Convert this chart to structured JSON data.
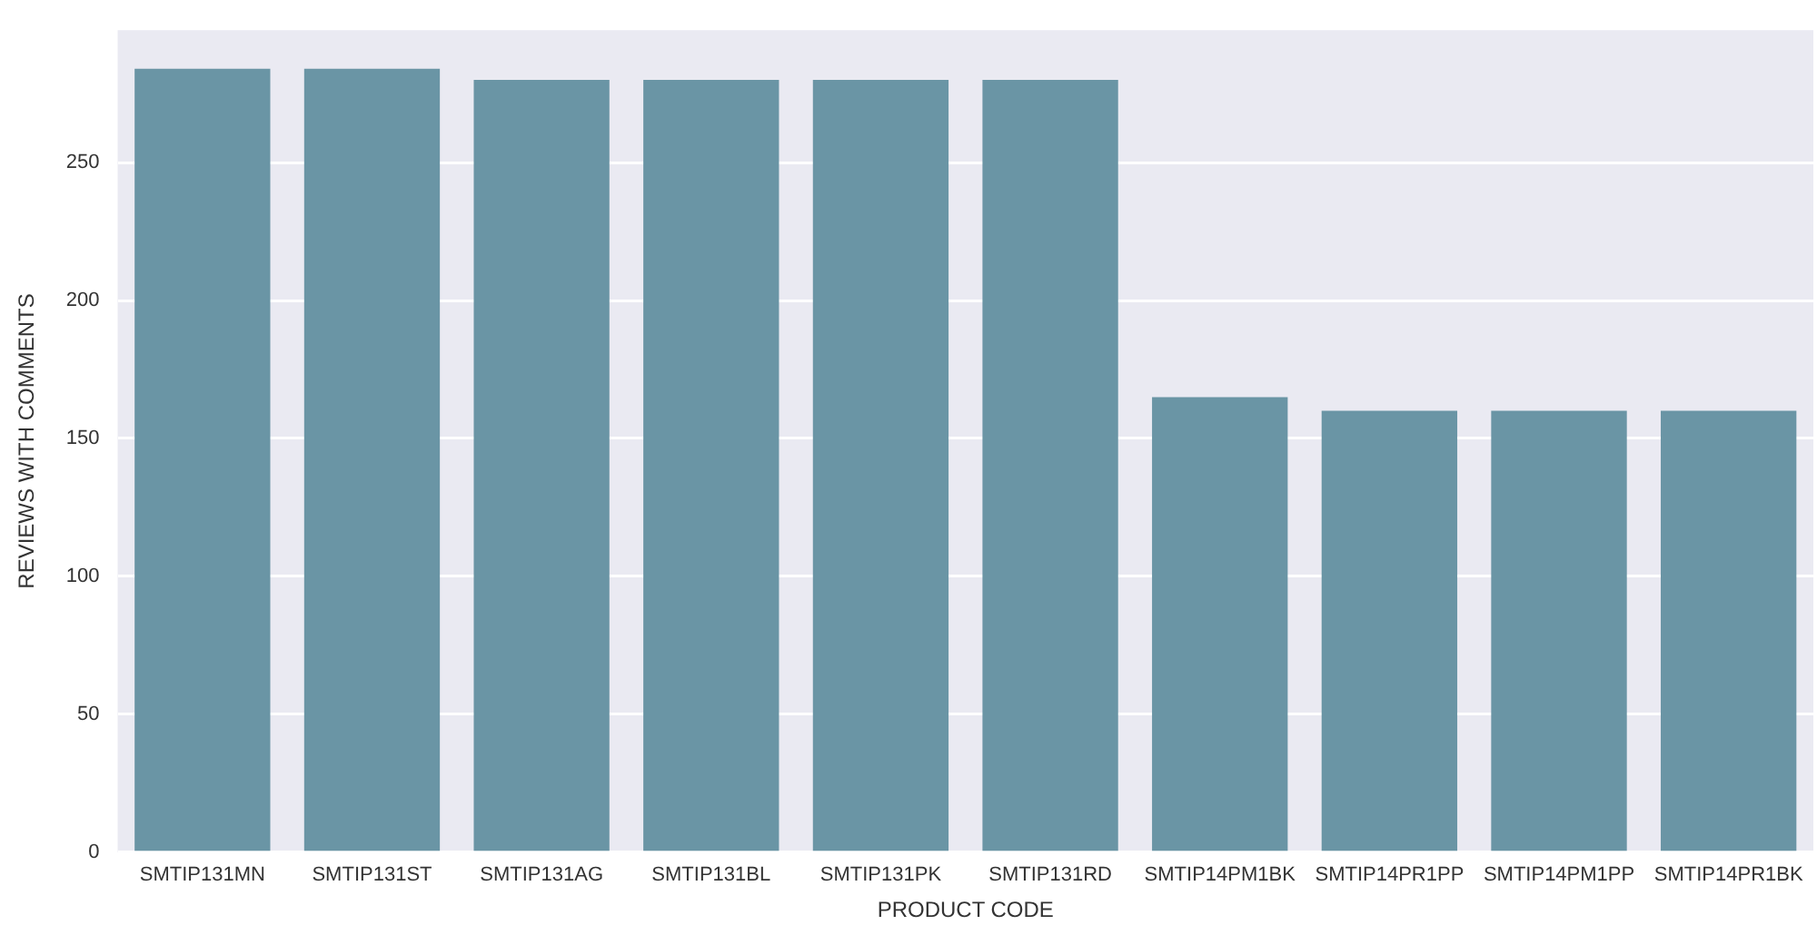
{
  "chart_data": {
    "type": "bar",
    "xlabel": "PRODUCT CODE",
    "ylabel": "REVIEWS WITH COMMENTS",
    "categories": [
      "SMTIP131MN",
      "SMTIP131ST",
      "SMTIP131AG",
      "SMTIP131BL",
      "SMTIP131PK",
      "SMTIP131RD",
      "SMTIP14PM1BK",
      "SMTIP14PR1PP",
      "SMTIP14PM1PP",
      "SMTIP14PR1BK"
    ],
    "values": [
      284,
      284,
      280,
      280,
      280,
      280,
      165,
      160,
      160,
      160
    ],
    "color": "#6a95a5",
    "ylim": [
      0,
      298
    ],
    "yticks": [
      0,
      50,
      100,
      150,
      200,
      250
    ],
    "grid": "y",
    "legend": false
  }
}
